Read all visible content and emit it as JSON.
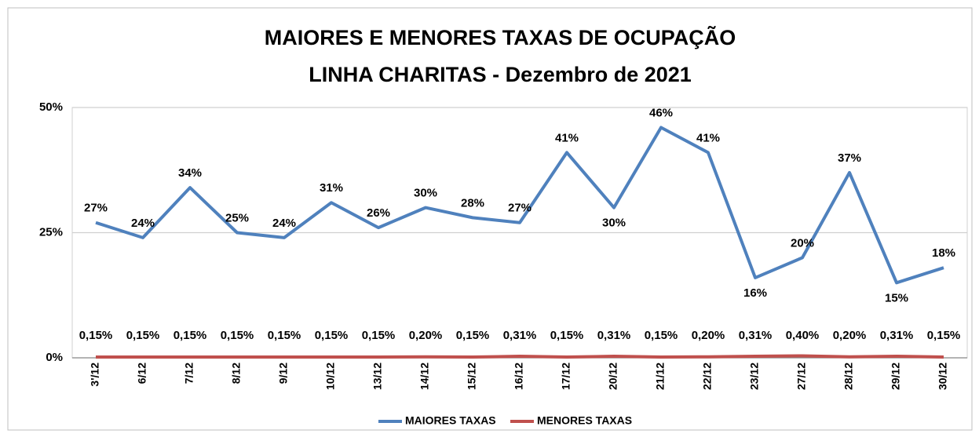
{
  "chart_data": {
    "type": "line",
    "title": "MAIORES E MENORES TAXAS DE OCUPAÇÃO",
    "subtitle": "LINHA CHARITAS - Dezembro de 2021",
    "categories": [
      "3'/12",
      "6/12",
      "7/12",
      "8/12",
      "9/12",
      "10/12",
      "13/12",
      "14/12",
      "15/12",
      "16/12",
      "17/12",
      "20/12",
      "21/12",
      "22/12",
      "23/12",
      "27/12",
      "28/12",
      "29/12",
      "30/12"
    ],
    "series": [
      {
        "name": "MAIORES TAXAS",
        "color": "#4f81bd",
        "values": [
          27,
          24,
          34,
          25,
          24,
          31,
          26,
          30,
          28,
          27,
          41,
          30,
          46,
          41,
          16,
          20,
          37,
          15,
          18
        ],
        "value_labels": [
          "27%",
          "24%",
          "34%",
          "25%",
          "24%",
          "31%",
          "26%",
          "30%",
          "28%",
          "27%",
          "41%",
          "30%",
          "46%",
          "41%",
          "16%",
          "20%",
          "37%",
          "15%",
          "18%"
        ]
      },
      {
        "name": "MENORES TAXAS",
        "color": "#c0504d",
        "values": [
          0.15,
          0.15,
          0.15,
          0.15,
          0.15,
          0.15,
          0.15,
          0.2,
          0.15,
          0.31,
          0.15,
          0.31,
          0.15,
          0.2,
          0.31,
          0.4,
          0.2,
          0.31,
          0.15
        ],
        "value_labels": [
          "0,15%",
          "0,15%",
          "0,15%",
          "0,15%",
          "0,15%",
          "0,15%",
          "0,15%",
          "0,20%",
          "0,15%",
          "0,31%",
          "0,15%",
          "0,31%",
          "0,15%",
          "0,20%",
          "0,31%",
          "0,40%",
          "0,20%",
          "0,31%",
          "0,15%"
        ]
      }
    ],
    "ylim": [
      0,
      50
    ],
    "yticks": [
      {
        "value": 0,
        "label": "0%"
      },
      {
        "value": 25,
        "label": "25%"
      },
      {
        "value": 50,
        "label": "50%"
      }
    ],
    "grid": true,
    "legend": "bottom"
  }
}
